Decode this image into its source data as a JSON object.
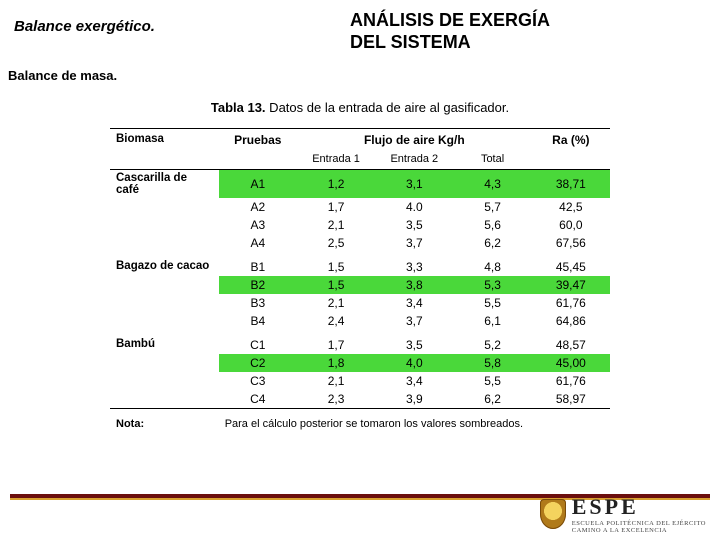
{
  "header": {
    "left": "Balance exergético.",
    "right_l1": "ANÁLISIS DE EXERGÍA",
    "right_l2": "DEL SISTEMA"
  },
  "subhead": "Balance de masa.",
  "caption": {
    "bold": "Tabla 13.",
    "rest": " Datos de la entrada de aire al gasificador."
  },
  "table": {
    "headers": {
      "biomasa": "Biomasa",
      "pruebas": "Pruebas",
      "flujo": "Flujo de aire Kg/h",
      "ra": "Ra (%)",
      "entrada1": "Entrada 1",
      "entrada2": "Entrada 2",
      "total": "Total"
    },
    "groups": [
      {
        "label": "Cascarilla de café",
        "rows": [
          {
            "p": "A1",
            "e1": "1,2",
            "e2": "3,1",
            "tot": "4,3",
            "ra": "38,71",
            "hl": true
          },
          {
            "p": "A2",
            "e1": "1,7",
            "e2": "4.0",
            "tot": "5,7",
            "ra": "42,5",
            "hl": false
          },
          {
            "p": "A3",
            "e1": "2,1",
            "e2": "3,5",
            "tot": "5,6",
            "ra": "60,0",
            "hl": false
          },
          {
            "p": "A4",
            "e1": "2,5",
            "e2": "3,7",
            "tot": "6,2",
            "ra": "67,56",
            "hl": false
          }
        ]
      },
      {
        "label": "Bagazo de cacao",
        "rows": [
          {
            "p": "B1",
            "e1": "1,5",
            "e2": "3,3",
            "tot": "4,8",
            "ra": "45,45",
            "hl": false
          },
          {
            "p": "B2",
            "e1": "1,5",
            "e2": "3,8",
            "tot": "5,3",
            "ra": "39,47",
            "hl": true
          },
          {
            "p": "B3",
            "e1": "2,1",
            "e2": "3,4",
            "tot": "5,5",
            "ra": "61,76",
            "hl": false
          },
          {
            "p": "B4",
            "e1": "2,4",
            "e2": "3,7",
            "tot": "6,1",
            "ra": "64,86",
            "hl": false
          }
        ]
      },
      {
        "label": "Bambú",
        "rows": [
          {
            "p": "C1",
            "e1": "1,7",
            "e2": "3,5",
            "tot": "5,2",
            "ra": "48,57",
            "hl": false
          },
          {
            "p": "C2",
            "e1": "1,8",
            "e2": "4,0",
            "tot": "5,8",
            "ra": "45,00",
            "hl": true
          },
          {
            "p": "C3",
            "e1": "2,1",
            "e2": "3,4",
            "tot": "5,5",
            "ra": "61,76",
            "hl": false
          },
          {
            "p": "C4",
            "e1": "2,3",
            "e2": "3,9",
            "tot": "6,2",
            "ra": "58,97",
            "hl": false
          }
        ]
      }
    ],
    "note_label": "Nota:",
    "note_text": "Para el cálculo posterior se tomaron los valores sombreados."
  },
  "colors": {
    "highlight": "#4ad83a",
    "footer_bar": "#6b0e0e",
    "footer_accent": "#d8a030"
  },
  "logo": {
    "big": "ESPE",
    "line1": "ESCUELA POLITÉCNICA DEL EJÉRCITO",
    "line2": "CAMINO A LA EXCELENCIA"
  }
}
